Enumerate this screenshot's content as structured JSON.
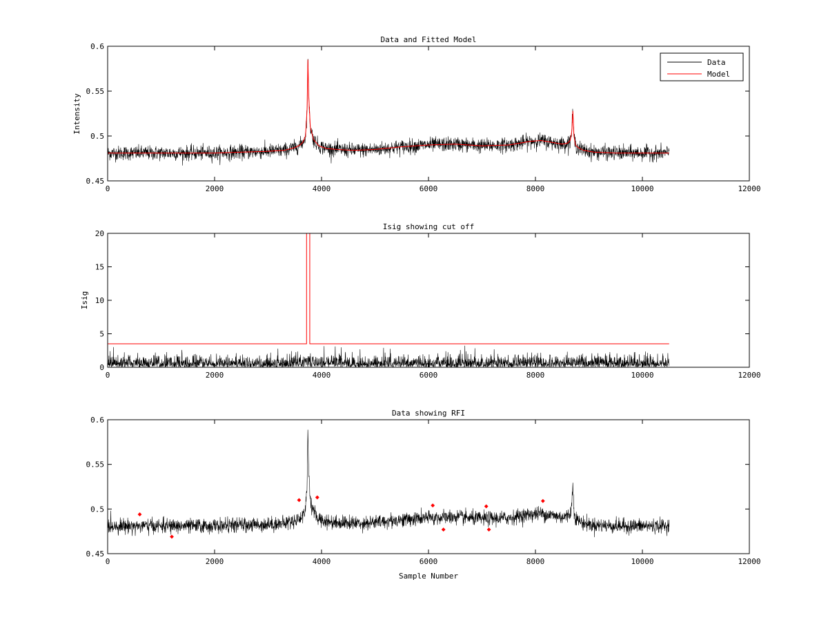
{
  "chart_data": [
    {
      "type": "line",
      "title": "Data and Fitted Model",
      "xlabel": "",
      "ylabel": "Intensity",
      "xlim": [
        0,
        12000
      ],
      "ylim": [
        0.45,
        0.6
      ],
      "xticks": [
        0,
        2000,
        4000,
        6000,
        8000,
        10000,
        12000
      ],
      "yticks": [
        0.45,
        0.5,
        0.55,
        0.6
      ],
      "ytick_labels": [
        "0.45",
        "0.5",
        "0.55",
        "0.6"
      ],
      "legend": {
        "position": "top-right",
        "entries": [
          {
            "label": "Data",
            "color": "#000000"
          },
          {
            "label": "Model",
            "color": "#ff0000"
          }
        ]
      },
      "series": [
        {
          "name": "Data",
          "color": "#000000",
          "style": "noisy",
          "noise": 0.004,
          "x": [
            0,
            500,
            1000,
            1500,
            2000,
            2500,
            3000,
            3300,
            3500,
            3600,
            3650,
            3700,
            3730,
            3745,
            3760,
            3790,
            3850,
            3950,
            4100,
            4300,
            4600,
            5000,
            5500,
            6000,
            6500,
            7000,
            7500,
            7900,
            8100,
            8300,
            8500,
            8600,
            8650,
            8680,
            8700,
            8720,
            8750,
            8800,
            8900,
            9100,
            9500,
            10000,
            10500
          ],
          "y": [
            0.481,
            0.481,
            0.481,
            0.481,
            0.481,
            0.482,
            0.483,
            0.484,
            0.487,
            0.49,
            0.493,
            0.5,
            0.53,
            0.585,
            0.545,
            0.51,
            0.496,
            0.489,
            0.486,
            0.485,
            0.484,
            0.485,
            0.488,
            0.49,
            0.491,
            0.489,
            0.49,
            0.494,
            0.495,
            0.493,
            0.491,
            0.492,
            0.495,
            0.505,
            0.528,
            0.5,
            0.49,
            0.487,
            0.484,
            0.482,
            0.481,
            0.481,
            0.481
          ]
        },
        {
          "name": "Model",
          "color": "#ff0000",
          "style": "smooth",
          "x": [
            0,
            500,
            1000,
            1500,
            2000,
            2500,
            3000,
            3300,
            3500,
            3600,
            3650,
            3700,
            3730,
            3745,
            3760,
            3790,
            3850,
            3950,
            4100,
            4300,
            4600,
            5000,
            5500,
            6000,
            6500,
            7000,
            7500,
            7900,
            8100,
            8300,
            8500,
            8600,
            8650,
            8680,
            8700,
            8720,
            8750,
            8800,
            8900,
            9100,
            9500,
            10000,
            10500
          ],
          "y": [
            0.481,
            0.481,
            0.481,
            0.481,
            0.481,
            0.482,
            0.483,
            0.484,
            0.487,
            0.49,
            0.493,
            0.5,
            0.53,
            0.585,
            0.545,
            0.51,
            0.496,
            0.489,
            0.486,
            0.485,
            0.484,
            0.485,
            0.488,
            0.49,
            0.491,
            0.489,
            0.49,
            0.494,
            0.495,
            0.493,
            0.491,
            0.492,
            0.495,
            0.505,
            0.528,
            0.5,
            0.49,
            0.487,
            0.484,
            0.482,
            0.481,
            0.481,
            0.481
          ]
        }
      ]
    },
    {
      "type": "line",
      "title": "Isig showing cut off",
      "xlabel": "",
      "ylabel": "Isig",
      "xlim": [
        0,
        12000
      ],
      "ylim": [
        0,
        20
      ],
      "xticks": [
        0,
        2000,
        4000,
        6000,
        8000,
        10000,
        12000
      ],
      "yticks": [
        0,
        5,
        10,
        15,
        20
      ],
      "ytick_labels": [
        "0",
        "5",
        "10",
        "15",
        "20"
      ],
      "series": [
        {
          "name": "",
          "color": "#000000",
          "style": "noisy-positive",
          "x": [
            0,
            3600,
            3700,
            3750,
            3800,
            3900,
            10500
          ],
          "y": [
            0.9,
            0.9,
            1.2,
            1.4,
            1.2,
            0.9,
            0.9
          ]
        },
        {
          "name": "",
          "color": "#ff0000",
          "style": "step",
          "x": [
            0,
            3720,
            3720,
            3780,
            3780,
            10500
          ],
          "y": [
            3.5,
            3.5,
            20,
            20,
            3.5,
            3.5
          ]
        }
      ]
    },
    {
      "type": "line",
      "title": "Data showing RFI",
      "xlabel": "Sample Number",
      "ylabel": "",
      "xlim": [
        0,
        12000
      ],
      "ylim": [
        0.45,
        0.6
      ],
      "xticks": [
        0,
        2000,
        4000,
        6000,
        8000,
        10000,
        12000
      ],
      "yticks": [
        0.45,
        0.5,
        0.55,
        0.6
      ],
      "ytick_labels": [
        "0.45",
        "0.5",
        "0.55",
        "0.6"
      ],
      "series": [
        {
          "name": "",
          "color": "#000000",
          "style": "noisy",
          "noise": 0.004,
          "x": [
            0,
            500,
            1000,
            1500,
            2000,
            2500,
            3000,
            3300,
            3500,
            3600,
            3650,
            3700,
            3730,
            3745,
            3760,
            3790,
            3850,
            3950,
            4100,
            4300,
            4600,
            5000,
            5500,
            6000,
            6500,
            7000,
            7500,
            7900,
            8100,
            8300,
            8500,
            8600,
            8650,
            8680,
            8700,
            8720,
            8750,
            8800,
            8900,
            9100,
            9500,
            10000,
            10500
          ],
          "y": [
            0.481,
            0.481,
            0.481,
            0.481,
            0.481,
            0.482,
            0.483,
            0.484,
            0.487,
            0.49,
            0.493,
            0.5,
            0.53,
            0.585,
            0.545,
            0.51,
            0.496,
            0.489,
            0.486,
            0.485,
            0.484,
            0.485,
            0.488,
            0.49,
            0.491,
            0.489,
            0.49,
            0.494,
            0.495,
            0.493,
            0.491,
            0.492,
            0.495,
            0.505,
            0.528,
            0.5,
            0.49,
            0.487,
            0.484,
            0.482,
            0.481,
            0.481,
            0.481
          ]
        },
        {
          "name": "",
          "color": "#ff0000",
          "style": "markers",
          "x": [
            600,
            1200,
            3580,
            3920,
            6080,
            6280,
            7080,
            7130,
            8140
          ],
          "y": [
            0.494,
            0.469,
            0.51,
            0.513,
            0.504,
            0.477,
            0.503,
            0.477,
            0.509
          ]
        }
      ]
    }
  ]
}
